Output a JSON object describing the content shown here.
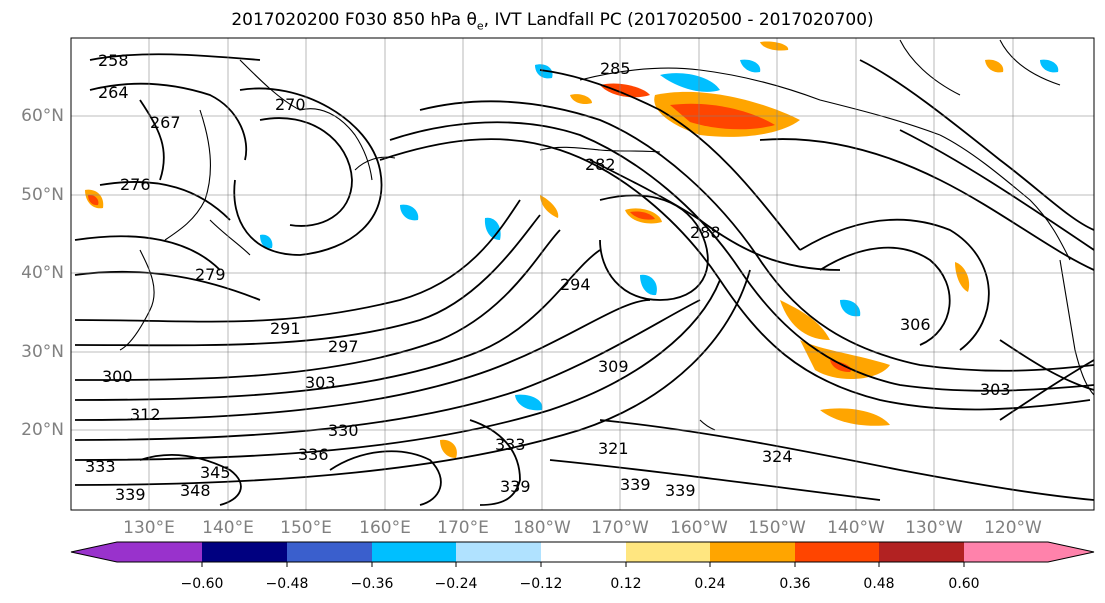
{
  "title": "2017020200 F030 850 hPa θ",
  "title_sub": "e",
  "title_rest": ", IVT Landfall PC (2017020500 - 2017020700)",
  "lat_labels": [
    "60°N",
    "50°N",
    "40°N",
    "30°N",
    "20°N"
  ],
  "lon_labels": [
    "130°E",
    "140°E",
    "150°E",
    "160°E",
    "170°E",
    "180°W",
    "170°W",
    "160°W",
    "150°W",
    "140°W",
    "130°W",
    "120°W"
  ],
  "contour_labels": [
    "258",
    "264",
    "267",
    "270",
    "276",
    "279",
    "282",
    "285",
    "288",
    "291",
    "294",
    "297",
    "300",
    "303",
    "306",
    "309",
    "312",
    "321",
    "324",
    "330",
    "333",
    "336",
    "339",
    "345",
    "348"
  ],
  "colorbar": {
    "colors": [
      "#9932cc",
      "#000080",
      "#3a5fcd",
      "#00bfff",
      "#b0e2ff",
      "#ffffff",
      "#ffe680",
      "#ffa500",
      "#ff4500",
      "#b22222",
      "#ff82ab"
    ],
    "ticks": [
      "−0.60",
      "−0.48",
      "−0.36",
      "−0.24",
      "−0.12",
      "0.12",
      "0.24",
      "0.36",
      "0.48",
      "0.60"
    ]
  }
}
